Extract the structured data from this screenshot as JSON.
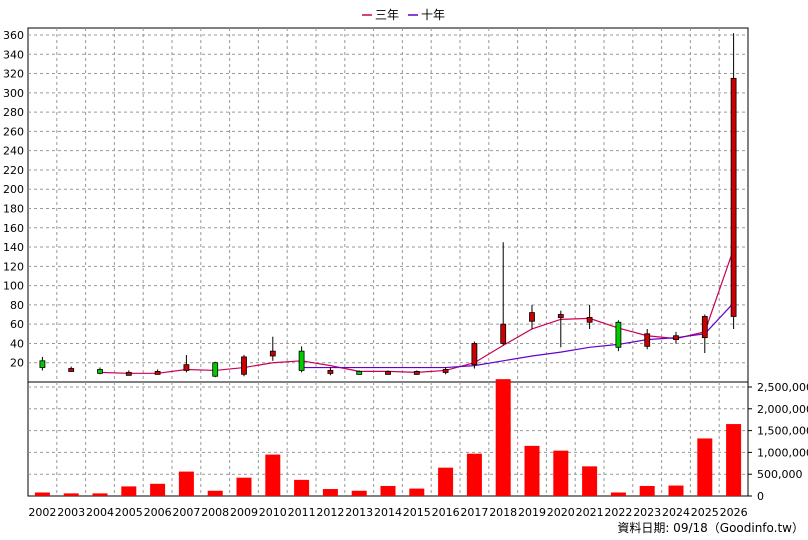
{
  "chart_data": {
    "type": "candlestick",
    "legend": [
      {
        "label": "三年",
        "color": "#cc0055"
      },
      {
        "label": "十年",
        "color": "#6600cc"
      }
    ],
    "years": [
      "2002",
      "2003",
      "2004",
      "2005",
      "2006",
      "2007",
      "2008",
      "2009",
      "2010",
      "2011",
      "2012",
      "2013",
      "2014",
      "2015",
      "2016",
      "2017",
      "2018",
      "2019",
      "2020",
      "2021",
      "2022",
      "2023",
      "2024",
      "2025",
      "2026"
    ],
    "price_axis": {
      "min": 0,
      "max": 360,
      "ticks": [
        20,
        40,
        60,
        80,
        100,
        120,
        140,
        160,
        180,
        200,
        220,
        240,
        260,
        280,
        300,
        320,
        340,
        360
      ]
    },
    "volume_axis": {
      "min": 0,
      "max": 2500000,
      "ticks": [
        0,
        500000,
        1000000,
        1500000,
        2000000,
        2500000
      ],
      "tick_labels": [
        "0",
        "500,000",
        "1,000,000",
        "1,500,000",
        "2,000,000",
        "2,500,000"
      ]
    },
    "candles": [
      {
        "o": 22,
        "h": 26,
        "l": 12,
        "c": 15
      },
      {
        "o": 13,
        "h": 16,
        "l": 11,
        "c": 14
      },
      {
        "o": 13,
        "h": 15,
        "l": 8,
        "c": 9
      },
      {
        "o": 9,
        "h": 12,
        "l": 7,
        "c": 10
      },
      {
        "o": 10,
        "h": 13,
        "l": 8,
        "c": 11
      },
      {
        "o": 12,
        "h": 28,
        "l": 10,
        "c": 18
      },
      {
        "o": 20,
        "h": 21,
        "l": 5,
        "c": 6
      },
      {
        "o": 8,
        "h": 28,
        "l": 6,
        "c": 26
      },
      {
        "o": 27,
        "h": 47,
        "l": 22,
        "c": 32
      },
      {
        "o": 32,
        "h": 37,
        "l": 10,
        "c": 12
      },
      {
        "o": 11,
        "h": 15,
        "l": 7,
        "c": 12
      },
      {
        "o": 11,
        "h": 12,
        "l": 9,
        "c": 10
      },
      {
        "o": 10,
        "h": 12,
        "l": 9,
        "c": 11
      },
      {
        "o": 10,
        "h": 12,
        "l": 8,
        "c": 11
      },
      {
        "o": 10,
        "h": 15,
        "l": 8,
        "c": 13
      },
      {
        "o": 18,
        "h": 42,
        "l": 14,
        "c": 40
      },
      {
        "o": 40,
        "h": 145,
        "l": 38,
        "c": 60
      },
      {
        "o": 63,
        "h": 80,
        "l": 55,
        "c": 72
      },
      {
        "o": 67,
        "h": 74,
        "l": 36,
        "c": 70
      },
      {
        "o": 62,
        "h": 80,
        "l": 55,
        "c": 67
      },
      {
        "o": 62,
        "h": 64,
        "l": 32,
        "c": 36
      },
      {
        "o": 37,
        "h": 55,
        "l": 34,
        "c": 50
      },
      {
        "o": 44,
        "h": 52,
        "l": 40,
        "c": 48
      },
      {
        "o": 46,
        "h": 70,
        "l": 30,
        "c": 68
      },
      {
        "o": 68,
        "h": 362,
        "l": 55,
        "c": 315
      }
    ],
    "ma3": [
      null,
      null,
      10,
      9,
      9,
      13,
      12,
      15,
      20,
      22,
      17,
      11,
      11,
      10,
      12,
      20,
      38,
      55,
      65,
      66,
      56,
      48,
      45,
      52,
      138
    ],
    "ma10": [
      null,
      null,
      null,
      null,
      null,
      null,
      null,
      null,
      null,
      15,
      15,
      15,
      15,
      15,
      15,
      17,
      22,
      27,
      31,
      36,
      39,
      44,
      46,
      50,
      82
    ],
    "volume": [
      80000,
      60000,
      60000,
      220000,
      280000,
      560000,
      120000,
      420000,
      950000,
      370000,
      160000,
      120000,
      230000,
      170000,
      650000,
      970000,
      2680000,
      1150000,
      1040000,
      680000,
      80000,
      230000,
      240000,
      1320000,
      1650000
    ]
  },
  "source_label": "資料日期: 09/18（Goodinfo.tw）"
}
